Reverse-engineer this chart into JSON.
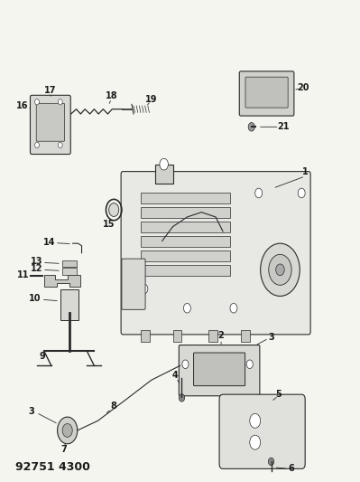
{
  "title": "92751 4300",
  "bg_color": "#f5f5f0",
  "line_color": "#2a2a2a",
  "label_color": "#1a1a1a"
}
